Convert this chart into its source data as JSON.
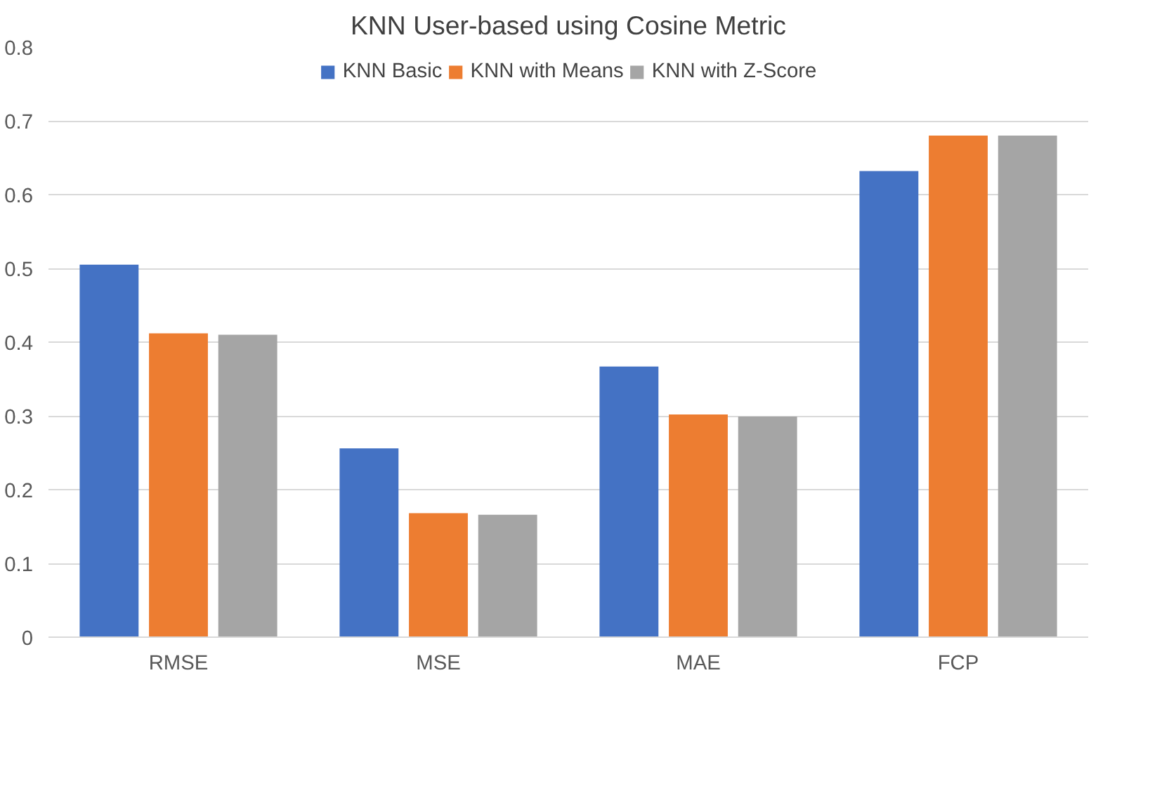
{
  "chart_data": {
    "type": "bar",
    "title": "KNN User-based using Cosine Metric",
    "categories": [
      "RMSE",
      "MSE",
      "MAE",
      "FCP"
    ],
    "series": [
      {
        "name": "KNN Basic",
        "color": "#4472c4",
        "values": [
          0.505,
          0.256,
          0.367,
          0.632
        ]
      },
      {
        "name": "KNN with Means",
        "color": "#ed7d31",
        "values": [
          0.412,
          0.168,
          0.302,
          0.68
        ]
      },
      {
        "name": "KNN with Z-Score",
        "color": "#a5a5a5",
        "values": [
          0.41,
          0.166,
          0.299,
          0.68
        ]
      }
    ],
    "ylim": [
      0,
      0.8
    ],
    "yticks": [
      0,
      0.1,
      0.2,
      0.3,
      0.4,
      0.5,
      0.6,
      0.7,
      0.8
    ],
    "grid": "y",
    "legend": "top"
  }
}
